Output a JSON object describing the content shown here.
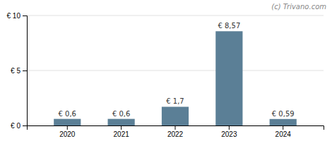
{
  "chart_data": {
    "type": "bar",
    "categories": [
      "2020",
      "2021",
      "2022",
      "2023",
      "2024"
    ],
    "values": [
      0.6,
      0.6,
      1.7,
      8.57,
      0.59
    ],
    "value_labels": [
      "€ 0,6",
      "€ 0,6",
      "€ 1,7",
      "€ 8,57",
      "€ 0,59"
    ],
    "data_labels": true,
    "color": "#5b7f96",
    "ylim": [
      0,
      10
    ],
    "yticks": [
      {
        "value": 0,
        "label": "€ 0"
      },
      {
        "value": 5,
        "label": "€ 5"
      },
      {
        "value": 10,
        "label": "€ 10"
      }
    ],
    "grid": true,
    "annotations": [
      "(c) Trivano.com"
    ]
  }
}
